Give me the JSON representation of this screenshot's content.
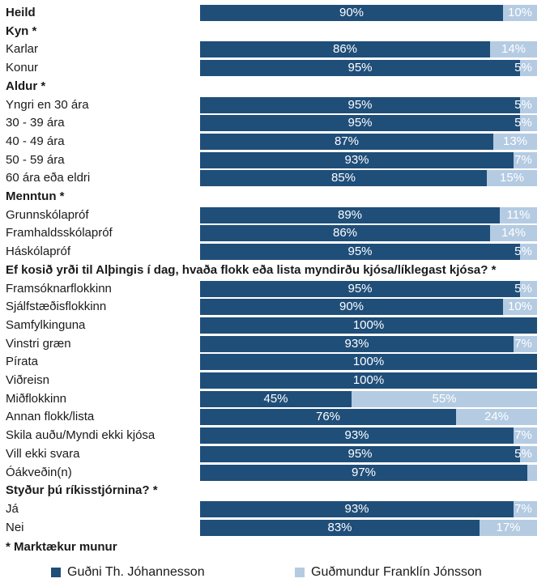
{
  "chart_data": {
    "type": "bar",
    "orientation": "horizontal",
    "stacked": true,
    "percent_scale": [
      0,
      100
    ],
    "colors": {
      "series_a": "#1f4e79",
      "series_b": "#b4cbe2"
    },
    "series": [
      {
        "name": "Guðni Th. Jóhannesson"
      },
      {
        "name": "Guðmundur Franklín Jónsson"
      }
    ],
    "rows": [
      {
        "label": "Heild",
        "header": true,
        "values": [
          90,
          10
        ],
        "labels": [
          "90%",
          "10%"
        ]
      },
      {
        "label": "Kyn *",
        "header": true
      },
      {
        "label": "Karlar",
        "values": [
          86,
          14
        ],
        "labels": [
          "86%",
          "14%"
        ]
      },
      {
        "label": "Konur",
        "values": [
          95,
          5
        ],
        "labels": [
          "95%",
          "5%"
        ]
      },
      {
        "label": "Aldur *",
        "header": true
      },
      {
        "label": "Yngri en 30 ára",
        "values": [
          95,
          5
        ],
        "labels": [
          "95%",
          "5%"
        ]
      },
      {
        "label": "30 - 39 ára",
        "values": [
          95,
          5
        ],
        "labels": [
          "95%",
          "5%"
        ]
      },
      {
        "label": "40 - 49 ára",
        "values": [
          87,
          13
        ],
        "labels": [
          "87%",
          "13%"
        ]
      },
      {
        "label": "50 - 59 ára",
        "values": [
          93,
          7
        ],
        "labels": [
          "93%",
          "7%"
        ]
      },
      {
        "label": "60 ára eða eldri",
        "values": [
          85,
          15
        ],
        "labels": [
          "85%",
          "15%"
        ]
      },
      {
        "label": "Menntun *",
        "header": true
      },
      {
        "label": "Grunnskólapróf",
        "values": [
          89,
          11
        ],
        "labels": [
          "89%",
          "11%"
        ]
      },
      {
        "label": "Framhaldsskólapróf",
        "values": [
          86,
          14
        ],
        "labels": [
          "86%",
          "14%"
        ]
      },
      {
        "label": "Háskólapróf",
        "values": [
          95,
          5
        ],
        "labels": [
          "95%",
          "5%"
        ]
      },
      {
        "label": "Ef kosið yrði til Alþingis í dag, hvaða flokk eða lista myndirðu kjósa/líklegast kjósa? *",
        "header": true
      },
      {
        "label": "Framsóknarflokkinn",
        "values": [
          95,
          5
        ],
        "labels": [
          "95%",
          "5%"
        ]
      },
      {
        "label": "Sjálfstæðisflokkinn",
        "values": [
          90,
          10
        ],
        "labels": [
          "90%",
          "10%"
        ]
      },
      {
        "label": "Samfylkinguna",
        "values": [
          100,
          0
        ],
        "labels": [
          "100%",
          ""
        ]
      },
      {
        "label": "Vinstri græn",
        "values": [
          93,
          7
        ],
        "labels": [
          "93%",
          "7%"
        ]
      },
      {
        "label": "Pírata",
        "values": [
          100,
          0
        ],
        "labels": [
          "100%",
          ""
        ]
      },
      {
        "label": "Viðreisn",
        "values": [
          100,
          0
        ],
        "labels": [
          "100%",
          ""
        ]
      },
      {
        "label": "Miðflokkinn",
        "values": [
          45,
          55
        ],
        "labels": [
          "45%",
          "55%"
        ]
      },
      {
        "label": "Annan flokk/lista",
        "values": [
          76,
          24
        ],
        "labels": [
          "76%",
          "24%"
        ]
      },
      {
        "label": "Skila auðu/Myndi ekki kjósa",
        "values": [
          93,
          7
        ],
        "labels": [
          "93%",
          "7%"
        ]
      },
      {
        "label": "Vill ekki svara",
        "values": [
          95,
          5
        ],
        "labels": [
          "95%",
          "5%"
        ]
      },
      {
        "label": "Óákveðin(n)",
        "values": [
          97,
          3
        ],
        "labels": [
          "97%",
          ""
        ]
      },
      {
        "label": "Styður þú ríkisstjórnina? *",
        "header": true
      },
      {
        "label": "Já",
        "values": [
          93,
          7
        ],
        "labels": [
          "93%",
          "7%"
        ]
      },
      {
        "label": "Nei",
        "values": [
          83,
          17
        ],
        "labels": [
          "83%",
          "17%"
        ]
      }
    ],
    "footnote": "* Marktækur munur",
    "legend_position": "bottom"
  }
}
